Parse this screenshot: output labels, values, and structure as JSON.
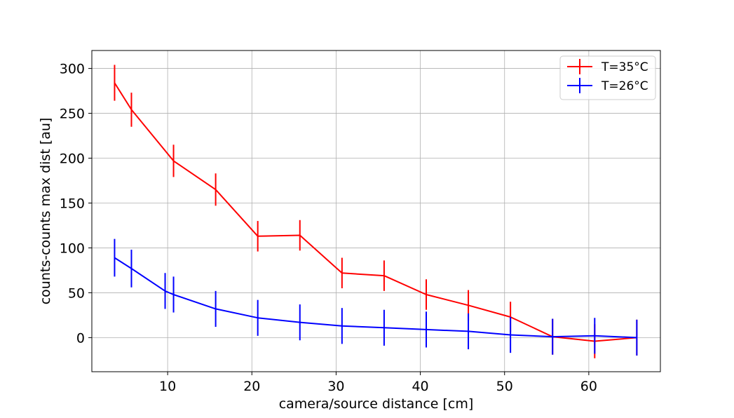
{
  "chart_data": {
    "type": "line",
    "title": "",
    "xlabel": "camera/source distance [cm]",
    "ylabel": "counts-counts max dist [au]",
    "xlim": [
      1.0,
      68.5
    ],
    "ylim": [
      -38,
      320
    ],
    "xticks": [
      10,
      20,
      30,
      40,
      50,
      60
    ],
    "yticks": [
      0,
      50,
      100,
      150,
      200,
      250,
      300
    ],
    "grid": true,
    "legend_position": "top-right",
    "series": [
      {
        "name": "T=35°C",
        "color": "#ff0000",
        "x": [
          3.7,
          5.7,
          10.7,
          15.7,
          20.7,
          25.7,
          30.7,
          35.7,
          40.7,
          45.7,
          50.7,
          55.7,
          60.7,
          65.7
        ],
        "y": [
          284,
          254,
          197,
          165,
          113,
          114,
          72,
          69,
          48,
          36,
          23,
          1,
          -4,
          0
        ],
        "yerr": [
          20,
          19,
          18,
          18,
          17,
          17,
          17,
          17,
          17,
          17,
          17,
          20,
          19,
          20
        ]
      },
      {
        "name": "T=26°C",
        "color": "#0000ff",
        "x": [
          3.7,
          5.7,
          9.7,
          10.7,
          15.7,
          20.7,
          25.7,
          30.7,
          35.7,
          40.7,
          45.7,
          50.7,
          55.7,
          60.7,
          65.7
        ],
        "y": [
          89,
          77,
          52,
          48,
          32,
          22,
          17,
          13,
          11,
          9,
          7,
          3,
          1,
          2,
          0
        ],
        "yerr": [
          21,
          21,
          20,
          20,
          20,
          20,
          20,
          20,
          20,
          20,
          20,
          20,
          20,
          20,
          20
        ]
      }
    ]
  }
}
